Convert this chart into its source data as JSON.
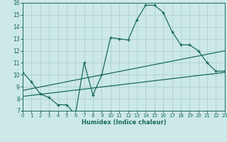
{
  "main_x": [
    0,
    1,
    2,
    3,
    4,
    5,
    6,
    7,
    8,
    9,
    10,
    11,
    12,
    13,
    14,
    15,
    16,
    17,
    18,
    19,
    20,
    21,
    22,
    23
  ],
  "main_y": [
    10.2,
    9.4,
    8.4,
    8.1,
    7.5,
    7.5,
    6.7,
    11.0,
    8.3,
    10.0,
    13.1,
    13.0,
    12.9,
    14.6,
    15.8,
    15.8,
    15.2,
    13.6,
    12.5,
    12.5,
    12.0,
    11.0,
    10.3,
    10.3
  ],
  "line1_x": [
    0,
    23
  ],
  "line1_y": [
    8.7,
    12.0
  ],
  "line2_x": [
    0,
    23
  ],
  "line2_y": [
    8.2,
    10.2
  ],
  "color": "#1a6b5a",
  "bg_color": "#cce8e8",
  "grid_color": "#afd0d0",
  "xlabel": "Humidex (Indice chaleur)",
  "ylim": [
    7,
    16
  ],
  "xlim": [
    0,
    23
  ],
  "yticks": [
    7,
    8,
    9,
    10,
    11,
    12,
    13,
    14,
    15,
    16
  ],
  "xticks": [
    0,
    1,
    2,
    3,
    4,
    5,
    6,
    7,
    8,
    9,
    10,
    11,
    12,
    13,
    14,
    15,
    16,
    17,
    18,
    19,
    20,
    21,
    22,
    23
  ]
}
